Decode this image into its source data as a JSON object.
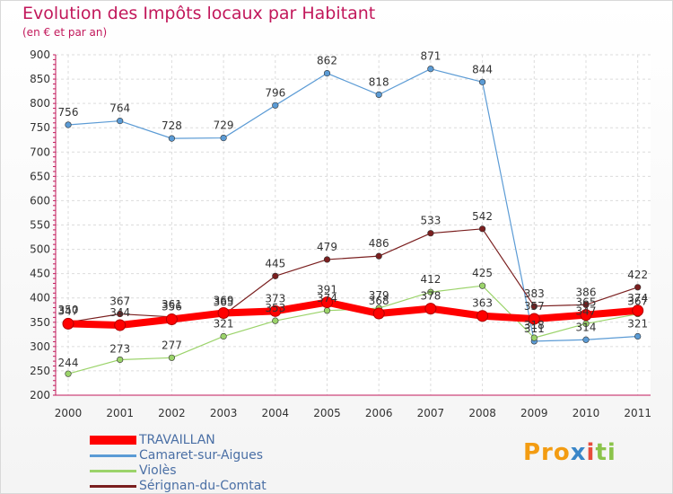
{
  "chart_data": {
    "type": "line",
    "title": "Evolution des Impôts locaux par Habitant",
    "subtitle": "(en € et par an)",
    "x": [
      "2000",
      "2001",
      "2002",
      "2003",
      "2004",
      "2005",
      "2006",
      "2007",
      "2008",
      "2009",
      "2010",
      "2011"
    ],
    "ylim": [
      200,
      900
    ],
    "yticks": [
      200,
      250,
      300,
      350,
      400,
      450,
      500,
      550,
      600,
      650,
      700,
      750,
      800,
      850,
      900
    ],
    "grid": true,
    "legend_position": "bottom-left",
    "series": [
      {
        "name": "TRAVAILLAN",
        "color": "#ff0000",
        "values": [
          347,
          344,
          356,
          369,
          373,
          391,
          368,
          378,
          363,
          357,
          365,
          374
        ],
        "labels": [
          "347",
          "344",
          "356",
          "369",
          "373",
          "391",
          "368",
          "378",
          "363",
          "357",
          "365",
          "374"
        ]
      },
      {
        "name": "Camaret-sur-Aigues",
        "color": "#5b9bd5",
        "values": [
          756,
          764,
          728,
          729,
          796,
          862,
          818,
          871,
          844,
          311,
          314,
          321
        ],
        "labels": [
          "756",
          "764",
          "728",
          "729",
          "796",
          "862",
          "818",
          "871",
          "844",
          "311",
          "314",
          "321"
        ]
      },
      {
        "name": "Violès",
        "color": "#9bd36a",
        "values": [
          244,
          273,
          277,
          321,
          353,
          374,
          379,
          412,
          425,
          318,
          347,
          367
        ],
        "labels": [
          "244",
          "273",
          "277",
          "321",
          "353",
          "374",
          "379",
          "412",
          "425",
          "318",
          "347",
          "367"
        ]
      },
      {
        "name": "Sérignan-du-Comtat",
        "color": "#7a1f1f",
        "values": [
          350,
          367,
          361,
          365,
          445,
          479,
          486,
          533,
          542,
          383,
          386,
          422
        ],
        "labels": [
          "350",
          "367",
          "361",
          "365",
          "445",
          "479",
          "486",
          "533",
          "542",
          "383",
          "386",
          "422"
        ]
      }
    ]
  },
  "legend": {
    "items": [
      {
        "label": "TRAVAILLAN",
        "color": "#ff0000"
      },
      {
        "label": "Camaret-sur-Aigues",
        "color": "#5b9bd5"
      },
      {
        "label": "Violès",
        "color": "#9bd36a"
      },
      {
        "label": "Sérignan-du-Comtat",
        "color": "#7a1f1f"
      }
    ]
  },
  "logo": {
    "part1": "Pro",
    "part2": "x",
    "part3": "i",
    "part4": "ti"
  }
}
